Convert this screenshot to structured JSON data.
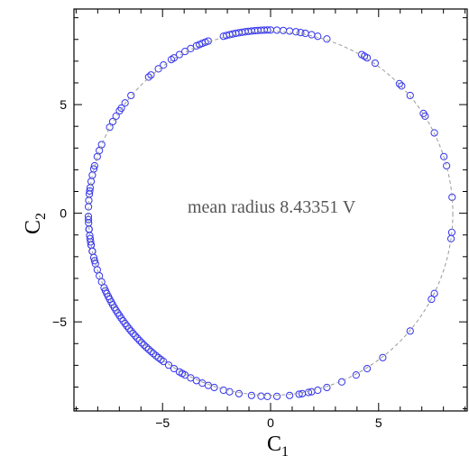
{
  "chart_data": {
    "type": "scatter",
    "xlabel": "C",
    "xlabel_sub": "1",
    "ylabel": "C",
    "ylabel_sub": "2",
    "xlim": [
      -9.1,
      9.1
    ],
    "ylim": [
      -9.1,
      9.4
    ],
    "xticks": [
      -5,
      0,
      5
    ],
    "yticks": [
      -5,
      0,
      5
    ],
    "xtick_labels": [
      "−5",
      "0",
      "5"
    ],
    "ytick_labels": [
      "−5",
      "0",
      "5"
    ],
    "annotation": "mean radius 8.43351 V",
    "reference_circle": {
      "center": [
        0,
        0
      ],
      "radius": 8.43351
    },
    "grid": false,
    "colors": {
      "points": "#3333ee",
      "circle": "#999999",
      "annotation": "#555555"
    },
    "points_angle_deg": [
      90,
      91,
      92,
      93,
      94,
      95,
      96,
      97,
      98,
      99,
      100,
      101,
      102,
      103,
      104,
      105,
      88,
      86,
      84,
      82,
      80.5,
      79,
      77,
      75,
      72,
      60,
      59,
      58,
      55,
      45,
      44,
      40,
      33,
      32,
      26,
      18,
      15,
      5,
      -6,
      -8,
      -26,
      -28,
      -40,
      -52,
      -58,
      -62,
      -67,
      -72,
      -75,
      -77,
      -78,
      -80,
      -81,
      -84,
      -88,
      -91,
      -93,
      -96,
      -100,
      -103,
      -105,
      -108,
      -110,
      -112,
      -114,
      -116,
      -118,
      -119,
      -120,
      -122,
      -124,
      -126,
      -127,
      -128,
      -129,
      -130,
      -131,
      -132,
      -133,
      -134,
      -135,
      -136,
      -137,
      -138,
      -139,
      -140,
      -141,
      -142,
      -143,
      -144,
      -145,
      -146,
      -147,
      -148,
      -149,
      -150,
      -151,
      -152,
      -153,
      -154,
      -155,
      -156,
      -158,
      -160,
      -162,
      -164,
      -166,
      -168,
      -170,
      -171,
      -172,
      -175,
      -178,
      181,
      183,
      185,
      187,
      190,
      192,
      195,
      158,
      160,
      162,
      165,
      166,
      168,
      170,
      172,
      173,
      174,
      176,
      178,
      152,
      150,
      148,
      146,
      145,
      143,
      140,
      132,
      131,
      128,
      126,
      123,
      122,
      120,
      118,
      116,
      114,
      113,
      112,
      111,
      110
    ]
  }
}
